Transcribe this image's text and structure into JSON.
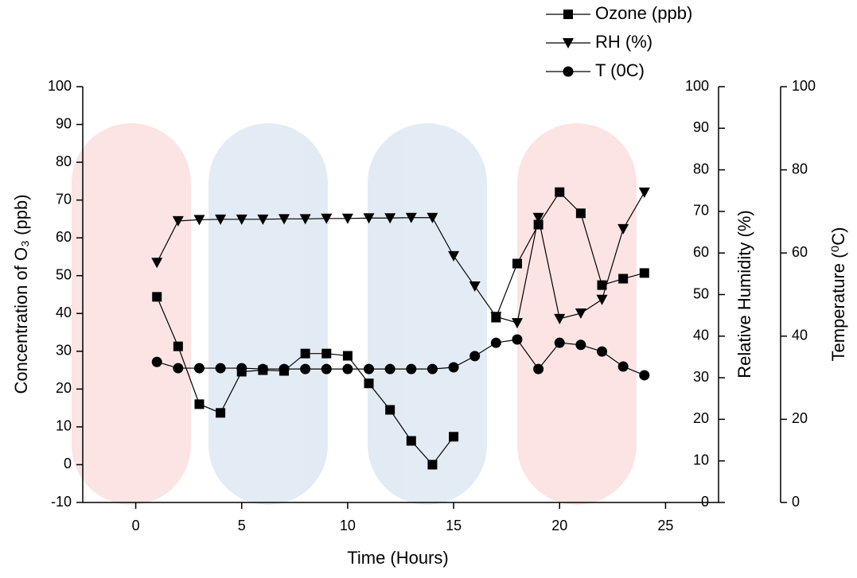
{
  "chart_data": {
    "type": "line",
    "x_label": "Time (Hours)",
    "y_label": "Concentration of O₃ (ppb)",
    "y2_label": "Relative Humidity (%)",
    "y3_label": "Temperature (⁰C)",
    "x": [
      1,
      2,
      3,
      4,
      5,
      6,
      7,
      8,
      9,
      10,
      11,
      12,
      13,
      14,
      15,
      16,
      17,
      18,
      19,
      20,
      21,
      22,
      23,
      24
    ],
    "xlim": [
      -2.5,
      27.5
    ],
    "xticks": [
      0,
      5,
      10,
      15,
      20,
      25
    ],
    "ylim": [
      -10,
      100
    ],
    "yticks": [
      -10,
      0,
      10,
      20,
      30,
      40,
      50,
      60,
      70,
      80,
      90,
      100
    ],
    "y2lim": [
      0,
      100
    ],
    "y2ticks": [
      0,
      10,
      20,
      30,
      40,
      50,
      60,
      70,
      80,
      90,
      100
    ],
    "y3lim": [
      0,
      100
    ],
    "y3ticks": [
      0,
      20,
      40,
      60,
      80,
      100
    ],
    "legend": "top-right",
    "series": [
      {
        "name": "Ozone (ppb)",
        "color": "#000000",
        "marker": "square",
        "values": [
          44.4,
          31.3,
          16.0,
          13.7,
          24.6,
          25.0,
          24.8,
          29.4,
          29.4,
          28.8,
          21.5,
          14.5,
          6.3,
          0,
          7.4,
          null,
          38.9,
          53.2,
          63.5,
          72.1,
          66.5,
          47.5,
          49.2,
          50.7
        ]
      },
      {
        "name": "RH (%)",
        "color": "#000000",
        "marker": "triangle-down",
        "axis": "y2",
        "values": [
          57.7,
          67.7,
          68.0,
          68.1,
          68.1,
          68.1,
          68.2,
          68.2,
          68.3,
          68.3,
          68.4,
          68.4,
          68.5,
          68.5,
          59.3,
          52.0,
          44.7,
          43.2,
          68.5,
          44.2,
          45.5,
          48.8,
          65.8,
          74.6
        ]
      },
      {
        "name": "T (0C)",
        "color": "#000000",
        "marker": "circle",
        "axis": "y3",
        "values": [
          33.8,
          32.3,
          32.3,
          32.3,
          32.3,
          32.1,
          32.1,
          32.1,
          32.1,
          32.1,
          32.1,
          32.1,
          32.1,
          32.1,
          32.5,
          35.2,
          38.4,
          39.2,
          32.1,
          38.4,
          37.9,
          36.3,
          32.7,
          30.6
        ]
      }
    ]
  }
}
